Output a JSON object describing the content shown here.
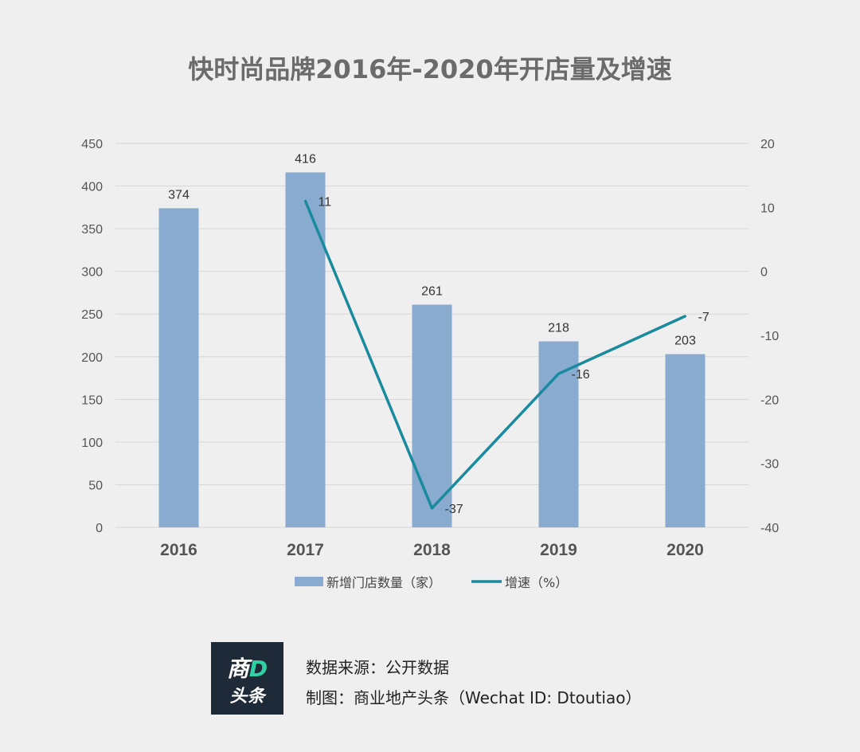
{
  "title": "快时尚品牌2016年-2020年开店量及增速",
  "colors": {
    "bar": "#8aabd0",
    "line": "#1a8a9e",
    "grid": "#d6d6d6",
    "background": "#efefef"
  },
  "chart_data": {
    "type": "bar",
    "categories": [
      "2016",
      "2017",
      "2018",
      "2019",
      "2020"
    ],
    "series": [
      {
        "name": "新增门店数量（家）",
        "type": "bar",
        "axis": "left",
        "values": [
          374,
          416,
          261,
          218,
          203
        ],
        "labels": [
          "374",
          "416",
          "261",
          "218",
          "203"
        ]
      },
      {
        "name": "增速（%）",
        "type": "line",
        "axis": "right",
        "values": [
          null,
          11,
          -37,
          -16,
          -7
        ],
        "labels": [
          "",
          "11",
          "-37",
          "-16",
          "-7"
        ]
      }
    ],
    "y_left": {
      "min": 0,
      "max": 450,
      "ticks": [
        "0",
        "50",
        "100",
        "150",
        "200",
        "250",
        "300",
        "350",
        "400",
        "450"
      ]
    },
    "y_right": {
      "min": -40,
      "max": 20,
      "ticks": [
        "-40",
        "-30",
        "-20",
        "-10",
        "0",
        "10",
        "20"
      ]
    },
    "grid": true,
    "legend_position": "bottom"
  },
  "footer": {
    "logo_top": "商",
    "logo_top_accent": "D",
    "logo_bottom": "头条",
    "source_line": "数据来源：公开数据",
    "credit_line": "制图：商业地产头条（Wechat ID: Dtoutiao）"
  }
}
